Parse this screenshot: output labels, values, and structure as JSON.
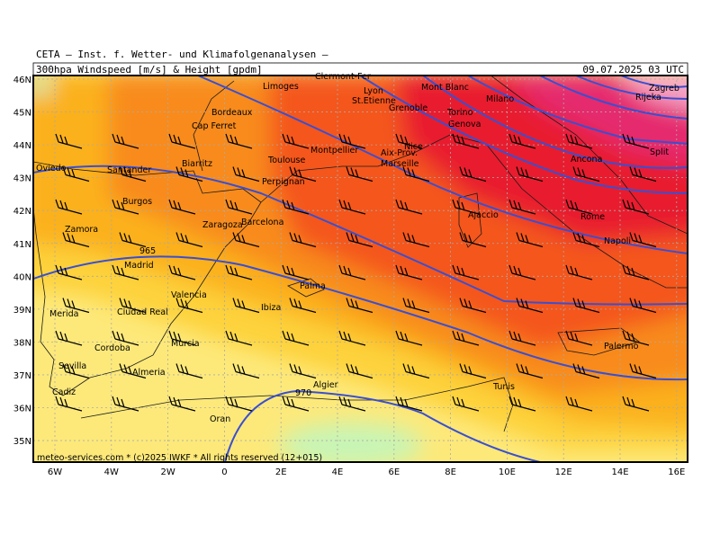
{
  "header": {
    "institute": "CETA — Inst. f. Wetter- und Klimafolgenanalysen —",
    "field": "300hpa_Windspeed_[m/s]_&_Height_[gpdm]",
    "time": "09.07.2025 03 UTC"
  },
  "map": {
    "lat_labels": [
      "46N",
      "45N",
      "44N",
      "43N",
      "42N",
      "41N",
      "40N",
      "39N",
      "38N",
      "37N",
      "36N",
      "35N"
    ],
    "lon_labels": [
      "6W",
      "4W",
      "2W",
      "0",
      "2E",
      "4E",
      "6E",
      "8E",
      "10E",
      "12E",
      "14E",
      "16E"
    ],
    "places": [
      "Limoges",
      "Clermont-Fer",
      "Lyon",
      "St.Etienne",
      "Bordeaux",
      "Grenoble",
      "Mont Blanc",
      "Torino",
      "Milano",
      "Cap Ferret",
      "Genova",
      "Montpellier",
      "Nice",
      "Toulouse",
      "Aix-Prov.",
      "Marseille",
      "Oviedo",
      "Santander",
      "Biarritz",
      "Perpignan",
      "Ancona",
      "Split",
      "Zagreb",
      "Rijeka",
      "Ajaccio",
      "Rome",
      "Burgos",
      "Zaragoza",
      "Barcelona",
      "Napoli",
      "Zamora",
      "Madrid",
      "Palma",
      "Valencia",
      "Ibiza",
      "Merida",
      "Ciudad Real",
      "Murcia",
      "Palermo",
      "Cordoba",
      "Sevilla",
      "Almeria",
      "Algier",
      "Tunis",
      "Cadiz",
      "Oran"
    ],
    "contour_labels": [
      "965",
      "970"
    ],
    "footer": "meteo-services.com * (c)2025 IWKF * All rights reserved (12+015)"
  }
}
